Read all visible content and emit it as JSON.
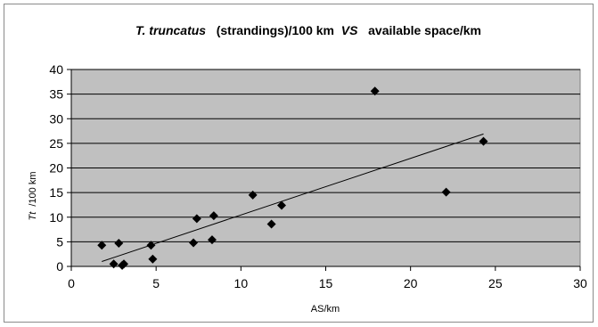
{
  "chart_data": {
    "type": "scatter",
    "title": {
      "part1": "T. truncatus",
      "part2": "  (strandings)/100 km ",
      "part3": "VS",
      "part4": "  available space/km"
    },
    "xlabel": "AS/km",
    "ylabel": {
      "italic": "Tt",
      "rest": " /100 km"
    },
    "xlim": [
      0,
      30
    ],
    "ylim": [
      0,
      40
    ],
    "x_ticks": [
      "0",
      "5",
      "10",
      "15",
      "20",
      "25",
      "30"
    ],
    "y_ticks": [
      "0",
      "5",
      "10",
      "15",
      "20",
      "25",
      "30",
      "35",
      "40"
    ],
    "grid": "horizontal major gridlines",
    "plot_background": "#c0c0c0",
    "marker_color": "#000000",
    "points": [
      {
        "x": 1.8,
        "y": 4.3
      },
      {
        "x": 2.5,
        "y": 0.5
      },
      {
        "x": 2.8,
        "y": 4.7
      },
      {
        "x": 3.0,
        "y": 0.2
      },
      {
        "x": 3.1,
        "y": 0.5
      },
      {
        "x": 4.7,
        "y": 4.3
      },
      {
        "x": 4.8,
        "y": 1.5
      },
      {
        "x": 7.2,
        "y": 4.8
      },
      {
        "x": 7.4,
        "y": 9.7
      },
      {
        "x": 8.3,
        "y": 5.4
      },
      {
        "x": 8.4,
        "y": 10.3
      },
      {
        "x": 10.7,
        "y": 14.5
      },
      {
        "x": 11.8,
        "y": 8.6
      },
      {
        "x": 12.4,
        "y": 12.4
      },
      {
        "x": 17.9,
        "y": 35.6
      },
      {
        "x": 22.1,
        "y": 15.1
      },
      {
        "x": 24.3,
        "y": 25.4
      }
    ],
    "trendline": {
      "type": "linear",
      "x_range": [
        1.8,
        24.3
      ],
      "y_start": 1.0,
      "y_end": 26.9
    }
  }
}
